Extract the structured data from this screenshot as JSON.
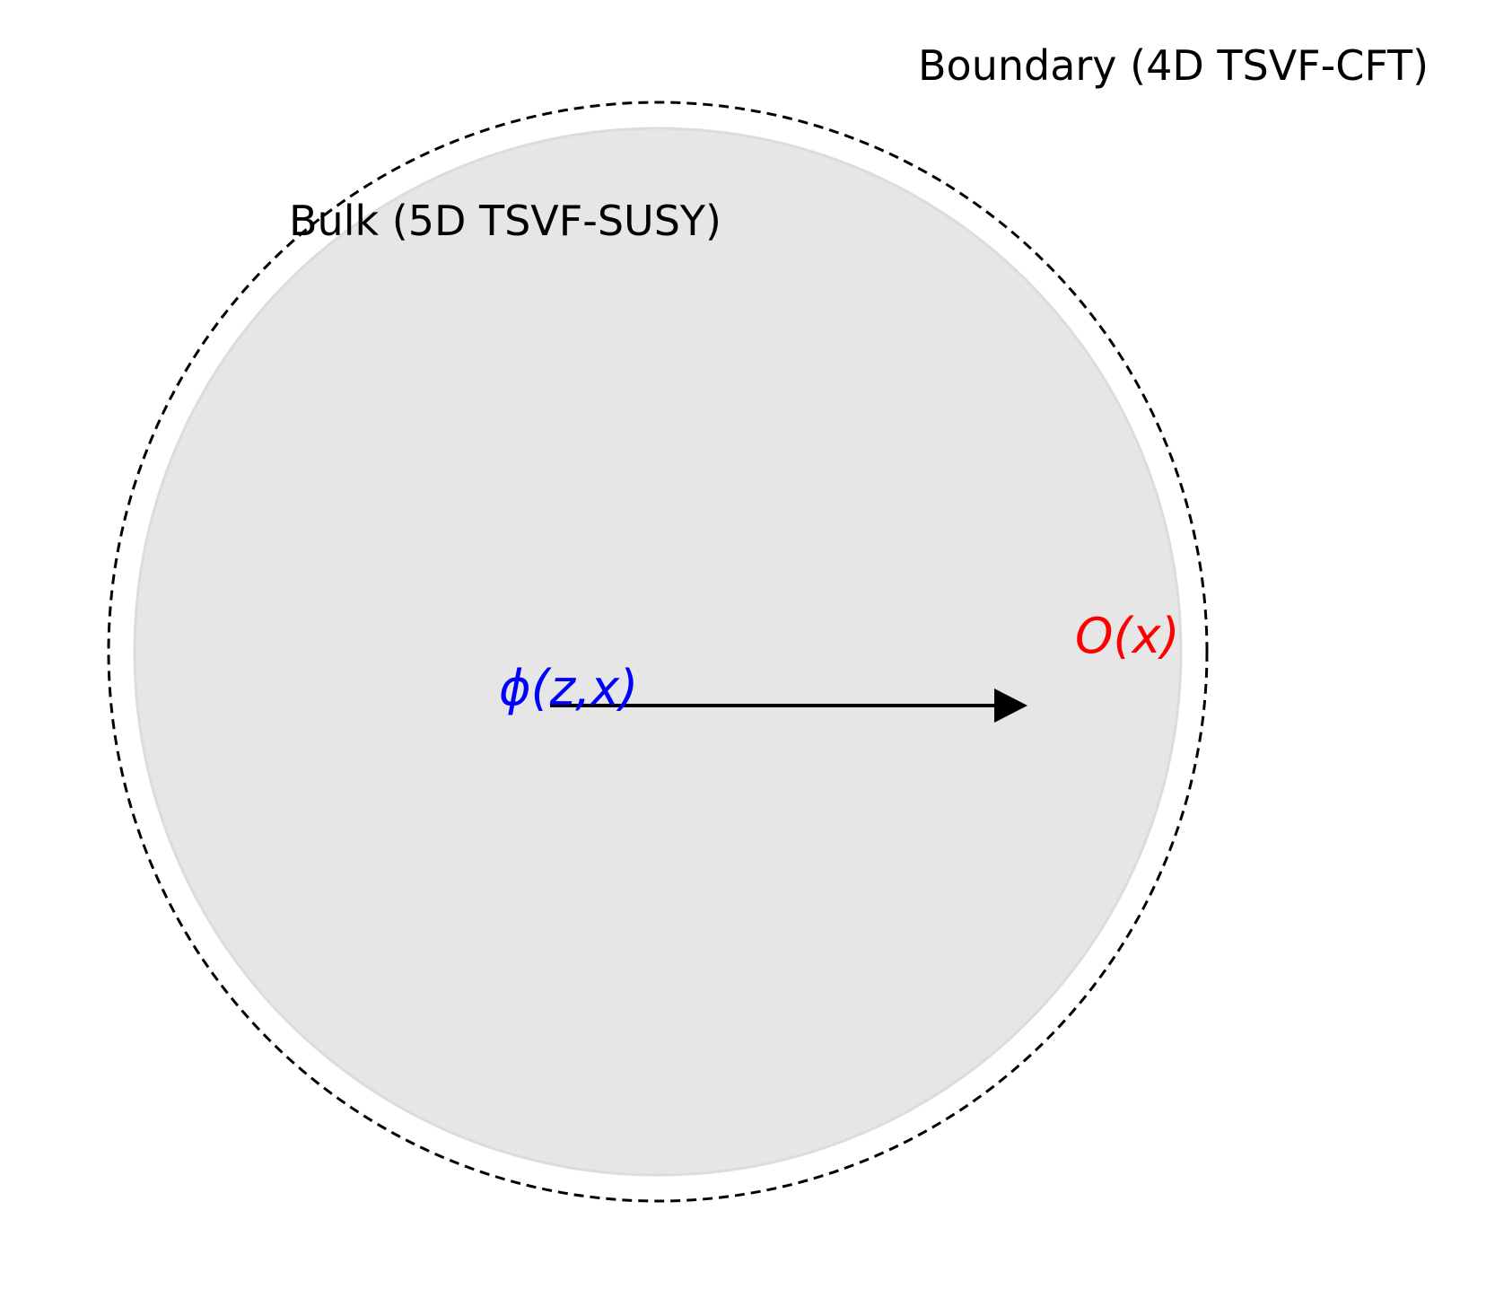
{
  "boundary": {
    "label": "Boundary (4D TSVF-CFT)",
    "stroke_color": "#000000"
  },
  "bulk": {
    "label": "Bulk (5D TSVF-SUSY)",
    "fill_color": "#e6e6e6",
    "edge_color": "#dcdcdc"
  },
  "bulk_field": {
    "label": "ϕ(z,x)",
    "color": "#0000ff"
  },
  "boundary_operator": {
    "label": "O(x)",
    "color": "#ff0000"
  },
  "arrow": {
    "color": "#000000"
  }
}
